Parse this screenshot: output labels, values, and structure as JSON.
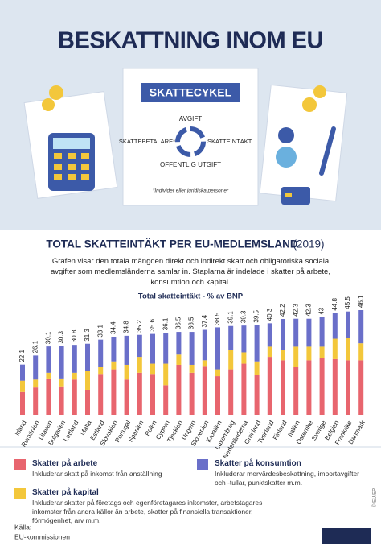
{
  "header": {
    "title": "BESKATTNING INOM EU"
  },
  "cycle": {
    "title": "SKATTECYKEL",
    "top": "AVGIFT",
    "left": "SKATTEBETALARE*",
    "right": "SKATTEINTÄKT",
    "bottom": "OFFENTLIG UTGIFT",
    "note": "*Individer eller juridiska personer"
  },
  "chart_data": {
    "type": "stacked_bar",
    "title": "TOTAL SKATTEINTÄKT PER EU-MEDLEMSLAND",
    "year": "(2019)",
    "subtitle": "Grafen visar den totala mängden direkt och indirekt skatt och obligatoriska sociala avgifter som medlemsländerna samlar in. Staplarna är indelade i skatter på arbete, konsumtion och kapital.",
    "y_label": "Total skatteintäkt - % av BNP",
    "categories": [
      "Irland",
      "Rumänien",
      "Litauen",
      "Bulgarien",
      "Lettland",
      "Malta",
      "Estland",
      "Slovakien",
      "Portugal",
      "Spanien",
      "Polen",
      "Cypern",
      "Tjeckien",
      "Ungern",
      "Slovenien",
      "Kroatien",
      "Luxemburg",
      "Nederländerna",
      "Grekland",
      "Tyskland",
      "Finland",
      "Italien",
      "Österrike",
      "Sverige",
      "Belgien",
      "Frankrike",
      "Danmark"
    ],
    "series": [
      {
        "name": "Skatter på arbete",
        "color": "#e8656e",
        "values": [
          10,
          12,
          16,
          12.5,
          15.5,
          11,
          18,
          20,
          15.5,
          18.5,
          18,
          13,
          22,
          18.5,
          21.5,
          17,
          20,
          22.5,
          17.5,
          25.5,
          24,
          21,
          24,
          25,
          24.5,
          24,
          24
        ]
      },
      {
        "name": "Skatter på kapital",
        "color": "#f3c73b",
        "values": [
          5,
          3.5,
          2.5,
          3.5,
          3,
          8.5,
          3,
          3.5,
          6.5,
          7,
          4.5,
          9.5,
          4.5,
          3.5,
          2.5,
          3,
          8.5,
          5,
          6,
          4.5,
          4.5,
          9,
          6,
          5,
          9,
          10,
          7.5
        ]
      },
      {
        "name": "Skatter på konsumtion",
        "color": "#6a6fc9",
        "values": [
          7.1,
          10.6,
          11.6,
          14.3,
          12.3,
          11.8,
          12.1,
          10.9,
          12.8,
          9.7,
          13.1,
          13.6,
          10,
          14.5,
          13.4,
          18.5,
          10.6,
          11.8,
          16,
          10.3,
          13.7,
          12.3,
          12.3,
          13,
          11.3,
          11.5,
          14.6
        ]
      }
    ],
    "totals": [
      22.1,
      26.1,
      30.1,
      30.3,
      30.8,
      31.3,
      33.1,
      34.4,
      34.8,
      35.2,
      35.6,
      36.1,
      36.5,
      36.5,
      37.4,
      38.5,
      39.1,
      39.3,
      39.5,
      40.3,
      42.2,
      42.3,
      42.3,
      43,
      44.8,
      45.5,
      46.1
    ],
    "ylim": [
      0,
      50
    ]
  },
  "legend": {
    "descriptions": [
      "Inkluderar skatt på inkomst från anställning",
      "Inkluderar skatter på företags och egenföretagares inkomster, arbetstagares inkomster från andra källor än arbete, skatter på finansiella transaktioner, förmögenhet, arv m.m.",
      "Inkluderar mervärdesbeskattning, importavgifter och -tullar, punktskatter m.m."
    ]
  },
  "source": {
    "label": "Källa:",
    "name": "EU-kommissionen",
    "copyright": "© EU/EP"
  }
}
